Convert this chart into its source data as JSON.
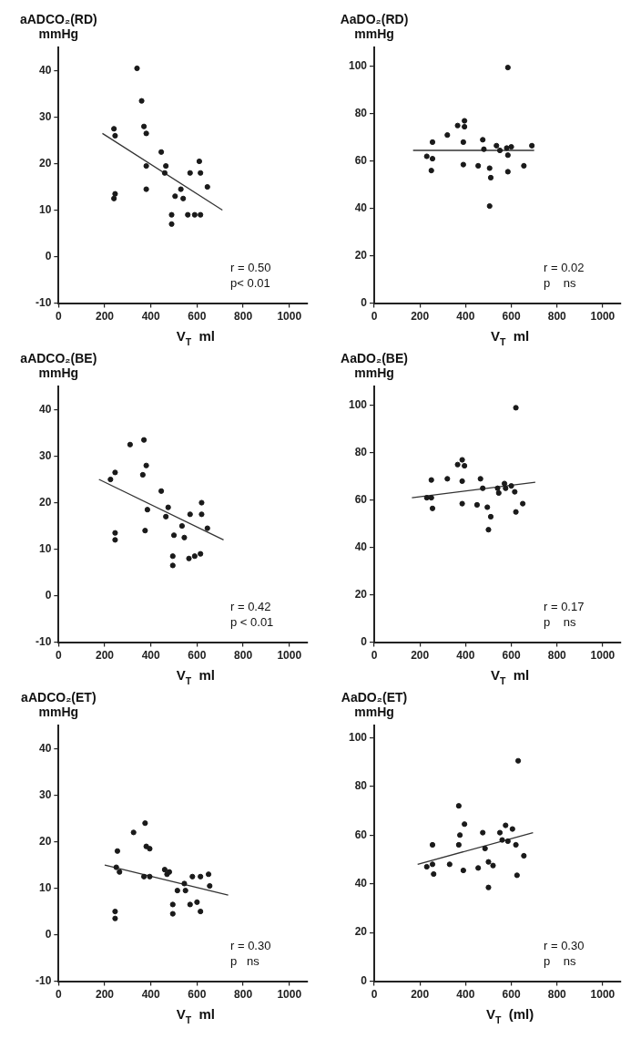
{
  "chart_data": [
    {
      "type": "scatter",
      "ylabel": "aADCO₂(RD)\nmmHg",
      "xlabel": "V$_{T}$  ml",
      "xlim": [
        0,
        1080
      ],
      "xticks": [
        0,
        200,
        400,
        600,
        800,
        1000
      ],
      "ylim": [
        -10,
        45
      ],
      "yticks": [
        -10,
        0,
        10,
        20,
        30,
        40
      ],
      "marker": "circle",
      "annotations": [
        "r = 0.50",
        "p< 0.01"
      ],
      "series": [
        {
          "type": "scatter",
          "color": "#1a1a1a",
          "x": [
            340,
            240,
            245,
            245,
            240,
            360,
            370,
            380,
            380,
            380,
            445,
            465,
            460,
            490,
            490,
            505,
            530,
            540,
            570,
            560,
            590,
            610,
            615,
            615,
            645
          ],
          "values": [
            40.5,
            27.5,
            26,
            13.5,
            12.5,
            33.5,
            28,
            26.5,
            19.5,
            14.5,
            22.5,
            19.5,
            18,
            7,
            9,
            13,
            14.5,
            12.5,
            18,
            9,
            9,
            20.5,
            18,
            9,
            15
          ]
        },
        {
          "type": "line",
          "color": "#333333",
          "line_style": "solid",
          "marker": "none",
          "x": [
            190,
            710
          ],
          "values": [
            26.5,
            10
          ]
        }
      ]
    },
    {
      "type": "scatter",
      "ylabel": "AaDO₂(RD)\nmmHg",
      "xlabel": "V$_{T}$  ml",
      "xlim": [
        0,
        1080
      ],
      "xticks": [
        0,
        200,
        400,
        600,
        800,
        1000
      ],
      "ylim": [
        0,
        108
      ],
      "yticks": [
        0,
        20,
        40,
        60,
        80,
        100
      ],
      "marker": "circle",
      "annotations": [
        "r = 0.02",
        "p    ns"
      ],
      "series": [
        {
          "type": "scatter",
          "color": "#1a1a1a",
          "x": [
            230,
            255,
            250,
            255,
            320,
            365,
            395,
            395,
            390,
            390,
            455,
            475,
            480,
            505,
            510,
            505,
            535,
            550,
            580,
            600,
            585,
            585,
            655,
            585,
            690
          ],
          "values": [
            62,
            68,
            56,
            61,
            71,
            75,
            77,
            74.5,
            68,
            58.5,
            58,
            69,
            65,
            57,
            53,
            41,
            66.5,
            64.5,
            65.5,
            66,
            62.5,
            55.5,
            58,
            99.5,
            66.5
          ]
        },
        {
          "type": "line",
          "color": "#333333",
          "line_style": "solid",
          "marker": "none",
          "x": [
            170,
            700
          ],
          "values": [
            64.5,
            64.5
          ]
        }
      ]
    },
    {
      "type": "scatter",
      "ylabel": "aADCO₂(BE)\nmmHg",
      "xlabel": "V$_{T}$  ml",
      "xlim": [
        0,
        1080
      ],
      "xticks": [
        0,
        200,
        400,
        600,
        800,
        1000
      ],
      "ylim": [
        -10,
        45
      ],
      "yticks": [
        -10,
        0,
        10,
        20,
        30,
        40
      ],
      "marker": "circle",
      "annotations": [
        "r = 0.42",
        "p < 0.01"
      ],
      "series": [
        {
          "type": "scatter",
          "color": "#1a1a1a",
          "x": [
            225,
            245,
            245,
            245,
            310,
            370,
            365,
            380,
            385,
            375,
            445,
            475,
            465,
            500,
            495,
            495,
            535,
            545,
            570,
            565,
            590,
            615,
            620,
            620,
            645
          ],
          "values": [
            25,
            26.5,
            13.5,
            12,
            32.5,
            33.5,
            26,
            28,
            18.5,
            14,
            22.5,
            19,
            17,
            13,
            8.5,
            6.5,
            15,
            12.5,
            17.5,
            8,
            8.5,
            9,
            20,
            17.5,
            14.5
          ]
        },
        {
          "type": "line",
          "color": "#333333",
          "line_style": "solid",
          "marker": "none",
          "x": [
            175,
            715
          ],
          "values": [
            25,
            12
          ]
        }
      ]
    },
    {
      "type": "scatter",
      "ylabel": "AaDO₂(BE)\nmmHg",
      "xlabel": "V$_{T}$  ml",
      "xlim": [
        0,
        1080
      ],
      "xticks": [
        0,
        200,
        400,
        600,
        800,
        1000
      ],
      "ylim": [
        0,
        108
      ],
      "yticks": [
        0,
        20,
        40,
        60,
        80,
        100
      ],
      "marker": "circle",
      "annotations": [
        "r = 0.17",
        "p    ns"
      ],
      "series": [
        {
          "type": "scatter",
          "color": "#1a1a1a",
          "x": [
            230,
            250,
            250,
            255,
            320,
            365,
            385,
            395,
            385,
            385,
            450,
            465,
            475,
            495,
            510,
            500,
            540,
            545,
            570,
            575,
            600,
            615,
            620,
            650,
            620
          ],
          "values": [
            61,
            61,
            68.5,
            56.5,
            69,
            75,
            77,
            74.5,
            68,
            58.5,
            58,
            69,
            65,
            57,
            53,
            47.5,
            65,
            63,
            67,
            65,
            66,
            63.5,
            55,
            58.5,
            99
          ]
        },
        {
          "type": "line",
          "color": "#333333",
          "line_style": "solid",
          "marker": "none",
          "x": [
            165,
            705
          ],
          "values": [
            61,
            67.5
          ]
        }
      ]
    },
    {
      "type": "scatter",
      "ylabel": "aADCO₂(ET)\nmmHg",
      "xlabel": "V$_{T}$  ml",
      "xlim": [
        0,
        1080
      ],
      "xticks": [
        0,
        200,
        400,
        600,
        800,
        1000
      ],
      "ylim": [
        -10,
        45
      ],
      "yticks": [
        -10,
        0,
        10,
        20,
        30,
        40
      ],
      "marker": "circle",
      "annotations": [
        "r = 0.30",
        "p   ns"
      ],
      "series": [
        {
          "type": "scatter",
          "color": "#1a1a1a",
          "x": [
            255,
            250,
            264,
            245,
            245,
            325,
            375,
            380,
            395,
            370,
            395,
            460,
            470,
            480,
            495,
            495,
            515,
            545,
            550,
            580,
            570,
            600,
            615,
            615,
            650,
            655
          ],
          "values": [
            18,
            14.5,
            13.5,
            5,
            3.5,
            22,
            24,
            19,
            18.5,
            12.5,
            12.5,
            14,
            13,
            13.5,
            6.5,
            4.5,
            9.5,
            11,
            9.5,
            12.5,
            6.5,
            7,
            5,
            12.5,
            13,
            10.5
          ]
        },
        {
          "type": "line",
          "color": "#333333",
          "line_style": "solid",
          "marker": "none",
          "x": [
            200,
            735
          ],
          "values": [
            15,
            8.5
          ]
        }
      ]
    },
    {
      "type": "scatter",
      "ylabel": "AaDO₂(ET)\nmmHg",
      "xlabel": "V$_{T}$  (ml)",
      "xlim": [
        0,
        1080
      ],
      "xticks": [
        0,
        200,
        400,
        600,
        800,
        1000
      ],
      "ylim": [
        0,
        105
      ],
      "yticks": [
        0,
        20,
        40,
        60,
        80,
        100
      ],
      "marker": "circle",
      "annotations": [
        "r = 0.30",
        "p    ns"
      ],
      "series": [
        {
          "type": "scatter",
          "color": "#1a1a1a",
          "x": [
            230,
            255,
            255,
            260,
            330,
            370,
            370,
            375,
            395,
            390,
            455,
            475,
            485,
            500,
            520,
            500,
            550,
            560,
            575,
            585,
            605,
            620,
            625,
            655,
            630
          ],
          "values": [
            47,
            56,
            48,
            44,
            48,
            56,
            72,
            60,
            64.5,
            45.5,
            46.5,
            61,
            54.5,
            49,
            47.5,
            38.5,
            61,
            58,
            64,
            57.5,
            62.5,
            56,
            43.5,
            51.5,
            90.5
          ]
        },
        {
          "type": "line",
          "color": "#333333",
          "line_style": "solid",
          "marker": "none",
          "x": [
            190,
            695
          ],
          "values": [
            48,
            61
          ]
        }
      ]
    }
  ]
}
